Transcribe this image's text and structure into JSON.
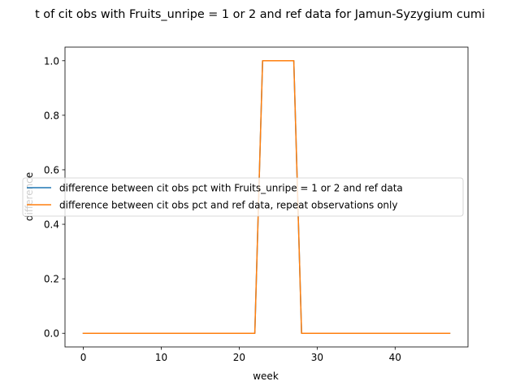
{
  "chart_data": {
    "type": "line",
    "title": "t of cit obs with Fruits_unripe = 1 or 2 and ref data for Jamun-Syzygium cumi",
    "xlabel": "week",
    "ylabel": "difference",
    "xlim": [
      -2.35,
      49.35
    ],
    "ylim": [
      -0.05,
      1.05
    ],
    "x_ticks": [
      0,
      10,
      20,
      30,
      40
    ],
    "x_tick_labels": [
      "0",
      "10",
      "20",
      "30",
      "40"
    ],
    "y_ticks": [
      0.0,
      0.2,
      0.4,
      0.6,
      0.8,
      1.0
    ],
    "y_tick_labels": [
      "0.0",
      "0.2",
      "0.4",
      "0.6",
      "0.8",
      "1.0"
    ],
    "grid": false,
    "legend_placement": "center-left",
    "x": [
      0,
      22,
      23,
      27,
      28,
      47
    ],
    "series": [
      {
        "name": "difference between cit obs pct with Fruits_unripe = 1 or 2 and ref data",
        "color": "#1f77b4",
        "values": [
          0,
          0,
          1,
          1,
          0,
          0
        ]
      },
      {
        "name": "difference between cit obs pct and ref data, repeat observations only",
        "color": "#ff7f0e",
        "values": [
          0,
          0,
          1,
          1,
          0,
          0
        ]
      }
    ]
  }
}
